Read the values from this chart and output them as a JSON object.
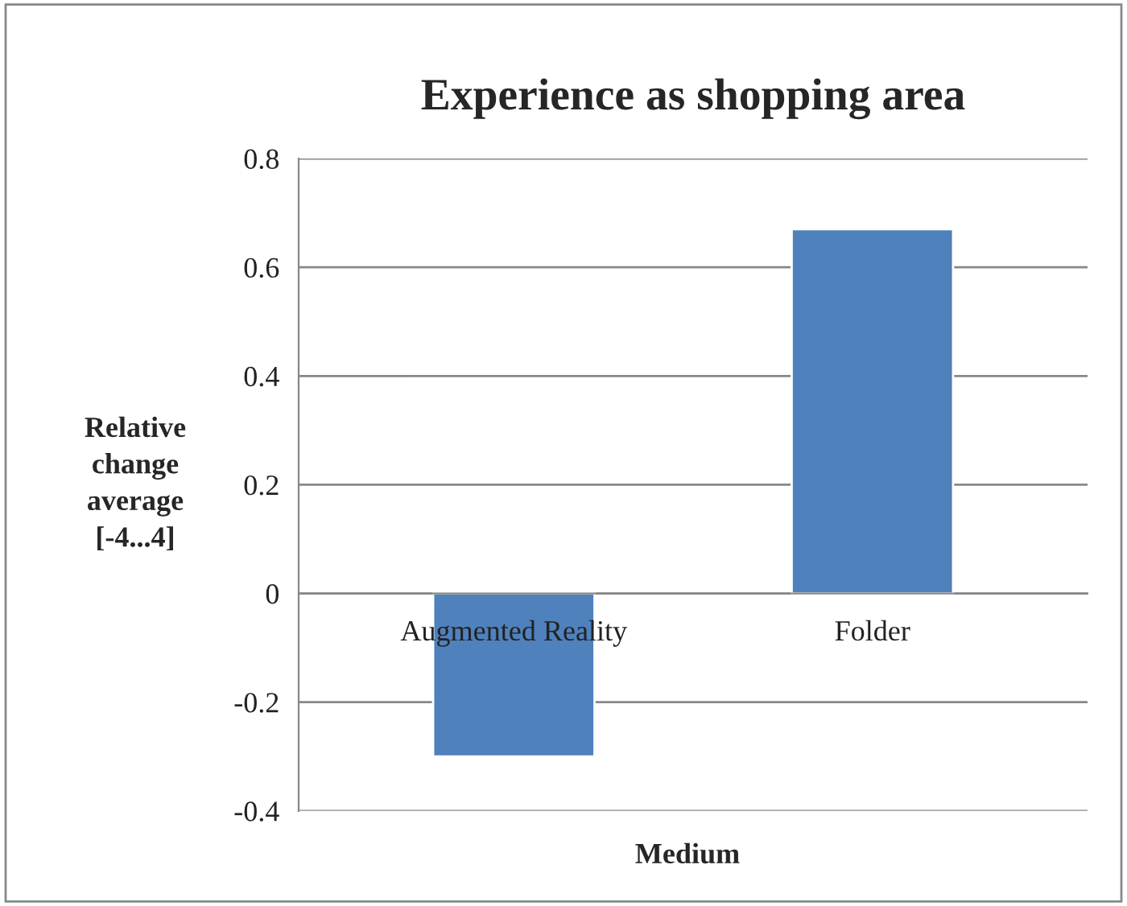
{
  "chart_data": {
    "type": "bar",
    "title": "Experience as shopping area",
    "xlabel": "Medium",
    "ylabel": "Relative change average [-4...4]",
    "categories": [
      "Augmented Reality",
      "Folder"
    ],
    "values": [
      -0.3,
      0.67
    ],
    "color": "#4f81bd",
    "ylim": [
      -0.4,
      0.8
    ],
    "yticks": [
      {
        "value": -0.4,
        "label": "-0.4"
      },
      {
        "value": -0.2,
        "label": "-0.2"
      },
      0,
      0.2,
      0.4,
      0.6,
      0.8
    ],
    "grid": "y",
    "legend": false
  }
}
